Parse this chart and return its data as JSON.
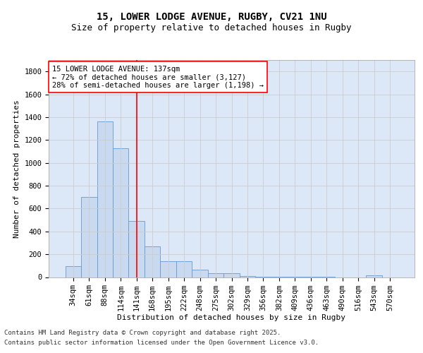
{
  "title_line1": "15, LOWER LODGE AVENUE, RUGBY, CV21 1NU",
  "title_line2": "Size of property relative to detached houses in Rugby",
  "xlabel": "Distribution of detached houses by size in Rugby",
  "ylabel": "Number of detached properties",
  "categories": [
    "34sqm",
    "61sqm",
    "88sqm",
    "114sqm",
    "141sqm",
    "168sqm",
    "195sqm",
    "222sqm",
    "248sqm",
    "275sqm",
    "302sqm",
    "329sqm",
    "356sqm",
    "382sqm",
    "409sqm",
    "436sqm",
    "463sqm",
    "490sqm",
    "516sqm",
    "543sqm",
    "570sqm"
  ],
  "values": [
    97,
    700,
    1360,
    1130,
    490,
    270,
    140,
    140,
    65,
    35,
    32,
    10,
    3,
    2,
    1,
    1,
    1,
    0,
    0,
    17,
    0
  ],
  "bar_color": "#c9d9f0",
  "bar_edge_color": "#6699cc",
  "vline_x": 4.0,
  "vline_color": "red",
  "annotation_text": "15 LOWER LODGE AVENUE: 137sqm\n← 72% of detached houses are smaller (3,127)\n28% of semi-detached houses are larger (1,198) →",
  "annotation_box_color": "red",
  "annotation_text_color": "black",
  "annotation_fontsize": 7.5,
  "ylim": [
    0,
    1900
  ],
  "yticks": [
    0,
    200,
    400,
    600,
    800,
    1000,
    1200,
    1400,
    1600,
    1800
  ],
  "grid_color": "#cccccc",
  "background_color": "#dce8f8",
  "footer_line1": "Contains HM Land Registry data © Crown copyright and database right 2025.",
  "footer_line2": "Contains public sector information licensed under the Open Government Licence v3.0.",
  "title_fontsize": 10,
  "subtitle_fontsize": 9,
  "axis_label_fontsize": 8,
  "tick_fontsize": 7.5
}
